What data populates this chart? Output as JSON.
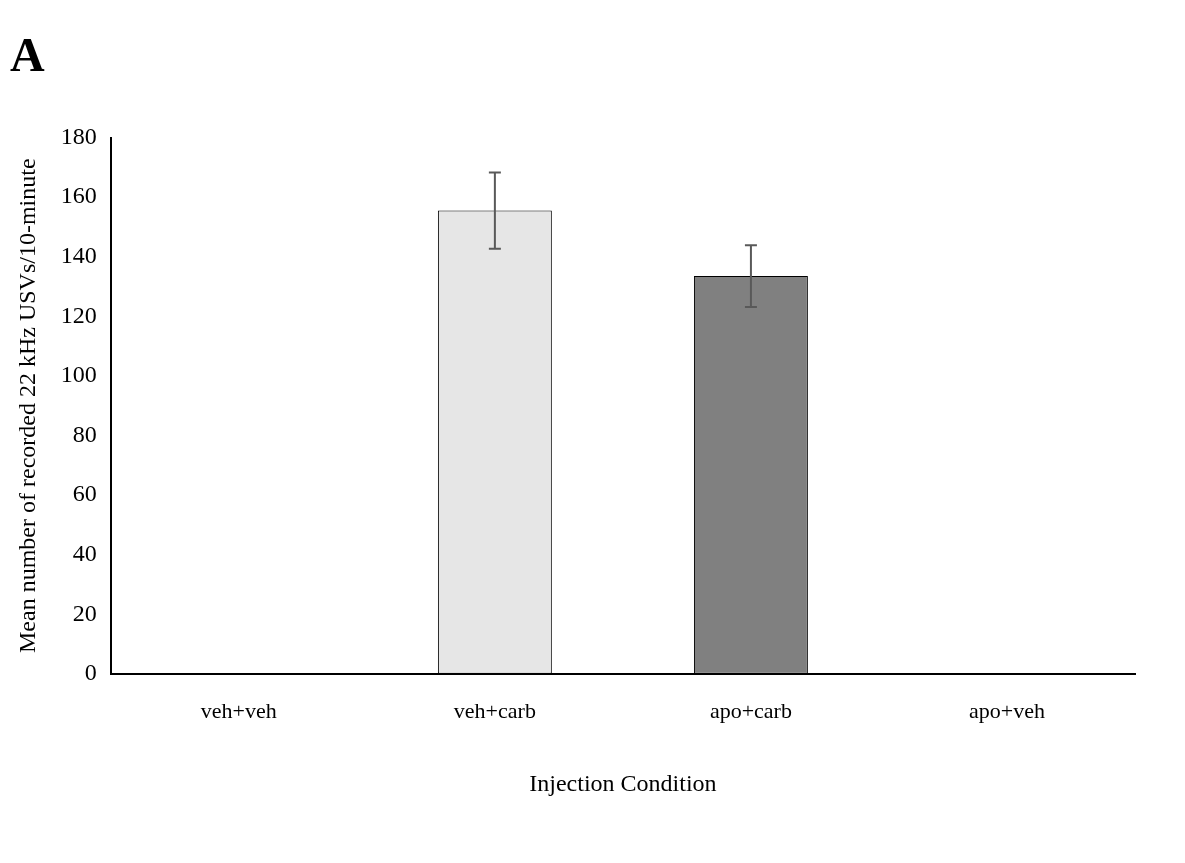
{
  "chart_data": {
    "type": "bar",
    "title": "A",
    "xlabel": "Injection Condition",
    "ylabel": "Mean number of recorded 22 kHz USVs/10-minute",
    "categories": [
      "veh+veh",
      "veh+carb",
      "apo+carb",
      "apo+veh"
    ],
    "values": [
      0,
      155.5,
      133.5,
      0
    ],
    "errors": [
      null,
      12.8,
      10.4,
      null
    ],
    "colors": [
      "#e6e6e6",
      "#e6e6e6",
      "#808080",
      "#808080"
    ],
    "ylim": [
      0,
      180
    ],
    "yticks": [
      0,
      20,
      40,
      60,
      80,
      100,
      120,
      140,
      160,
      180
    ],
    "grid": false,
    "legend": false
  }
}
